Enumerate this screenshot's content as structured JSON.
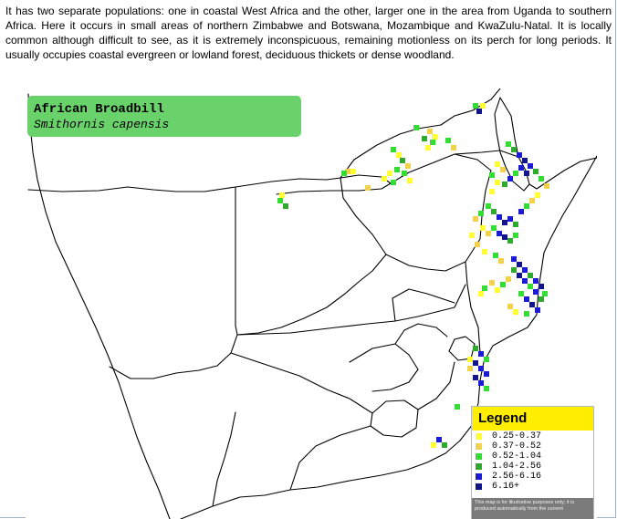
{
  "description": "It has two separate populations: one in coastal West Africa and the other, larger one in the area from Uganda to southern Africa. Here it occurs in small areas of northern Zimbabwe and Botswana, Mozambique and KwaZulu-Natal. It is locally common although difficult to see, as it is extremely inconspicuous, remaining motionless on its perch for long periods. It usually occupies coastal evergreen or lowland forest, deciduous thickets or dense woodland.",
  "species": {
    "common_name": "African Broadbill",
    "scientific_name": "Smithornis capensis"
  },
  "legend": {
    "title": "Legend",
    "items": [
      {
        "range": "0.25-0.37",
        "color": "#ffff33"
      },
      {
        "range": "0.37-0.52",
        "color": "#f2d24a"
      },
      {
        "range": "0.52-1.04",
        "color": "#33dd33"
      },
      {
        "range": "1.04-2.56",
        "color": "#2faa2f"
      },
      {
        "range": "2.56-6.16",
        "color": "#1b1bd6"
      },
      {
        "range": "6.16+",
        "color": "#14148c"
      }
    ],
    "note": "This map is for illustrative purposes only; it is produced automatically from the current"
  },
  "colors": {
    "title_box": "#6ad26a",
    "legend_header": "#ffee00",
    "border_line": "#000000"
  }
}
